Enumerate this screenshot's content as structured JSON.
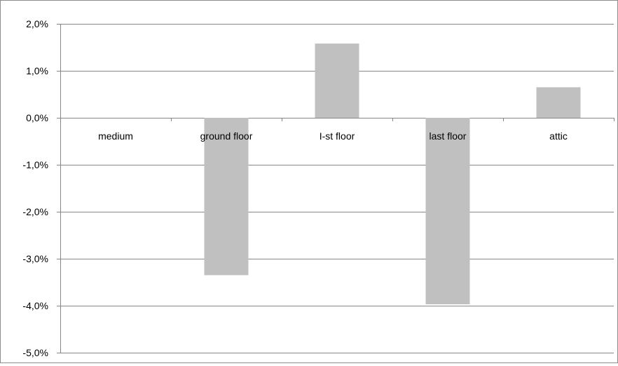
{
  "chart_data": {
    "type": "bar",
    "categories": [
      "medium",
      "ground floor",
      "I-st floor",
      "last floor",
      "attic"
    ],
    "values": [
      0.0,
      -3.35,
      1.58,
      -3.97,
      0.65
    ],
    "y_tick_labels": [
      "2,0%",
      "1,0%",
      "0,0%",
      "-1,0%",
      "-2,0%",
      "-3,0%",
      "-4,0%",
      "-5,0%"
    ],
    "y_ticks": [
      2,
      1,
      0,
      -1,
      -2,
      -3,
      -4,
      -5
    ],
    "ylim": [
      -5,
      2
    ],
    "title": "",
    "xlabel": "",
    "ylabel": "",
    "grid": true,
    "legend": "none",
    "bar_color": "#c0c0c0",
    "grid_color": "#868686"
  }
}
